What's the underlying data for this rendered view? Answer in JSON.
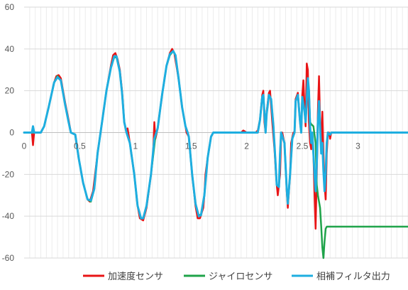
{
  "chart_data": {
    "type": "line",
    "title": "",
    "xlabel": "",
    "ylabel": "",
    "xlim": [
      0,
      3.45
    ],
    "ylim": [
      -60,
      60
    ],
    "x_ticks": [
      0,
      0.5,
      1,
      1.5,
      2,
      2.5,
      3
    ],
    "x_tick_labels": [
      "0",
      "0.5",
      "1",
      "1.5",
      "2",
      "2.5",
      "3"
    ],
    "y_ticks": [
      60,
      40,
      20,
      0,
      -20,
      -40,
      -60
    ],
    "y_tick_labels": [
      "60",
      "40",
      "20",
      "0",
      "-20",
      "-40",
      "-60"
    ],
    "grid": {
      "horizontal": true,
      "minor_vertical": true
    },
    "legend_position": "bottom",
    "series": [
      {
        "name": "加速度センサ",
        "color": "#e81416",
        "points": [
          [
            0,
            0
          ],
          [
            0.07,
            0
          ],
          [
            0.08,
            -6
          ],
          [
            0.09,
            0
          ],
          [
            0.15,
            0
          ],
          [
            0.18,
            3
          ],
          [
            0.22,
            12
          ],
          [
            0.27,
            24
          ],
          [
            0.29,
            27
          ],
          [
            0.31,
            27.5
          ],
          [
            0.33,
            26
          ],
          [
            0.37,
            14
          ],
          [
            0.4,
            6
          ],
          [
            0.42,
            0
          ],
          [
            0.46,
            -1
          ],
          [
            0.49,
            -12
          ],
          [
            0.53,
            -24
          ],
          [
            0.57,
            -32
          ],
          [
            0.59,
            -33
          ],
          [
            0.62,
            -28
          ],
          [
            0.66,
            -10
          ],
          [
            0.7,
            5
          ],
          [
            0.74,
            20
          ],
          [
            0.78,
            32
          ],
          [
            0.8,
            37
          ],
          [
            0.82,
            38
          ],
          [
            0.84,
            35
          ],
          [
            0.86,
            30
          ],
          [
            0.88,
            20
          ],
          [
            0.9,
            5
          ],
          [
            0.92,
            0
          ],
          [
            0.93,
            2
          ],
          [
            0.95,
            -5
          ],
          [
            0.99,
            -20
          ],
          [
            1.02,
            -35
          ],
          [
            1.04,
            -41
          ],
          [
            1.07,
            -42
          ],
          [
            1.1,
            -36
          ],
          [
            1.14,
            -20
          ],
          [
            1.16,
            -10
          ],
          [
            1.17,
            5
          ],
          [
            1.18,
            -3
          ],
          [
            1.2,
            2
          ],
          [
            1.24,
            18
          ],
          [
            1.28,
            32
          ],
          [
            1.31,
            38
          ],
          [
            1.33,
            40
          ],
          [
            1.35,
            38
          ],
          [
            1.39,
            25
          ],
          [
            1.42,
            12
          ],
          [
            1.45,
            3
          ],
          [
            1.46,
            0
          ],
          [
            1.48,
            -2
          ],
          [
            1.51,
            -20
          ],
          [
            1.54,
            -35
          ],
          [
            1.56,
            -41
          ],
          [
            1.58,
            -41
          ],
          [
            1.61,
            -36
          ],
          [
            1.62,
            -30
          ],
          [
            1.63,
            -20
          ],
          [
            1.65,
            -12
          ],
          [
            1.68,
            -2
          ],
          [
            1.7,
            0
          ],
          [
            1.95,
            0
          ],
          [
            1.97,
            1
          ],
          [
            2.0,
            0
          ],
          [
            2.08,
            0
          ],
          [
            2.1,
            1
          ],
          [
            2.12,
            6
          ],
          [
            2.14,
            18
          ],
          [
            2.15,
            20
          ],
          [
            2.16,
            5
          ],
          [
            2.17,
            0
          ],
          [
            2.18,
            10
          ],
          [
            2.2,
            19
          ],
          [
            2.21,
            20
          ],
          [
            2.23,
            5
          ],
          [
            2.25,
            -8
          ],
          [
            2.27,
            -25
          ],
          [
            2.28,
            -30
          ],
          [
            2.3,
            -20
          ],
          [
            2.31,
            -2
          ],
          [
            2.32,
            0
          ],
          [
            2.34,
            -5
          ],
          [
            2.36,
            -28
          ],
          [
            2.37,
            -36
          ],
          [
            2.39,
            -20
          ],
          [
            2.4,
            -5
          ],
          [
            2.42,
            0
          ],
          [
            2.43,
            0
          ],
          [
            2.44,
            16
          ],
          [
            2.46,
            19
          ],
          [
            2.48,
            5
          ],
          [
            2.49,
            0
          ],
          [
            2.5,
            18
          ],
          [
            2.51,
            25
          ],
          [
            2.52,
            12
          ],
          [
            2.53,
            3
          ],
          [
            2.54,
            33
          ],
          [
            2.55,
            30
          ],
          [
            2.56,
            5
          ],
          [
            2.57,
            -5
          ],
          [
            2.58,
            -8
          ],
          [
            2.59,
            0
          ],
          [
            2.6,
            -10
          ],
          [
            2.61,
            -30
          ],
          [
            2.62,
            -46
          ],
          [
            2.63,
            -20
          ],
          [
            2.64,
            10
          ],
          [
            2.65,
            27
          ],
          [
            2.66,
            5
          ],
          [
            2.67,
            -5
          ],
          [
            2.68,
            10
          ],
          [
            2.69,
            -10
          ],
          [
            2.7,
            -25
          ],
          [
            2.71,
            -32
          ],
          [
            2.72,
            -10
          ],
          [
            2.73,
            0
          ],
          [
            2.74,
            0
          ],
          [
            2.75,
            -3
          ],
          [
            2.76,
            0
          ],
          [
            3.45,
            0
          ]
        ]
      },
      {
        "name": "ジャイロセンサ",
        "color": "#1fa34a",
        "points": [
          [
            0,
            0
          ],
          [
            0.15,
            0
          ],
          [
            0.18,
            3
          ],
          [
            0.22,
            12
          ],
          [
            0.27,
            24
          ],
          [
            0.3,
            27
          ],
          [
            0.33,
            25
          ],
          [
            0.37,
            13
          ],
          [
            0.4,
            5
          ],
          [
            0.42,
            0
          ],
          [
            0.46,
            -1
          ],
          [
            0.49,
            -12
          ],
          [
            0.53,
            -24
          ],
          [
            0.57,
            -32
          ],
          [
            0.6,
            -33
          ],
          [
            0.63,
            -27
          ],
          [
            0.66,
            -10
          ],
          [
            0.7,
            5
          ],
          [
            0.74,
            20
          ],
          [
            0.78,
            31
          ],
          [
            0.81,
            36
          ],
          [
            0.83,
            36
          ],
          [
            0.86,
            29
          ],
          [
            0.88,
            19
          ],
          [
            0.9,
            5
          ],
          [
            0.92,
            0
          ],
          [
            0.95,
            -5
          ],
          [
            0.99,
            -20
          ],
          [
            1.02,
            -35
          ],
          [
            1.05,
            -41
          ],
          [
            1.07,
            -41
          ],
          [
            1.1,
            -35
          ],
          [
            1.14,
            -20
          ],
          [
            1.18,
            -2
          ],
          [
            1.2,
            2
          ],
          [
            1.24,
            18
          ],
          [
            1.28,
            32
          ],
          [
            1.31,
            37
          ],
          [
            1.34,
            39
          ],
          [
            1.36,
            37
          ],
          [
            1.39,
            25
          ],
          [
            1.42,
            12
          ],
          [
            1.45,
            3
          ],
          [
            1.47,
            0
          ],
          [
            1.48,
            -2
          ],
          [
            1.51,
            -20
          ],
          [
            1.54,
            -34
          ],
          [
            1.57,
            -40
          ],
          [
            1.59,
            -39
          ],
          [
            1.62,
            -30
          ],
          [
            1.65,
            -12
          ],
          [
            1.68,
            -2
          ],
          [
            1.7,
            0
          ],
          [
            2.1,
            0
          ],
          [
            2.12,
            6
          ],
          [
            2.14,
            17
          ],
          [
            2.15,
            18
          ],
          [
            2.17,
            0
          ],
          [
            2.18,
            9
          ],
          [
            2.2,
            18
          ],
          [
            2.22,
            16
          ],
          [
            2.24,
            3
          ],
          [
            2.26,
            -15
          ],
          [
            2.27,
            -25
          ],
          [
            2.29,
            -26
          ],
          [
            2.3,
            -10
          ],
          [
            2.31,
            0
          ],
          [
            2.34,
            -5
          ],
          [
            2.36,
            -27
          ],
          [
            2.37,
            -34
          ],
          [
            2.39,
            -20
          ],
          [
            2.41,
            -3
          ],
          [
            2.43,
            0
          ],
          [
            2.44,
            15
          ],
          [
            2.46,
            18
          ],
          [
            2.48,
            5
          ],
          [
            2.49,
            0
          ],
          [
            2.5,
            17
          ],
          [
            2.52,
            10
          ],
          [
            2.53,
            5
          ],
          [
            2.55,
            24
          ],
          [
            2.56,
            20
          ],
          [
            2.57,
            5
          ],
          [
            2.58,
            4
          ],
          [
            2.6,
            3
          ],
          [
            2.62,
            -5
          ],
          [
            2.63,
            -25
          ],
          [
            2.64,
            -30
          ],
          [
            2.65,
            -33
          ],
          [
            2.66,
            -36
          ],
          [
            2.67,
            -45
          ],
          [
            2.68,
            -55
          ],
          [
            2.69,
            -60
          ],
          [
            2.7,
            -52
          ],
          [
            2.71,
            -46
          ],
          [
            2.72,
            -45
          ],
          [
            3.45,
            -45
          ]
        ]
      },
      {
        "name": "相補フィルタ出力",
        "color": "#1eaee0",
        "points": [
          [
            0,
            0
          ],
          [
            0.07,
            0
          ],
          [
            0.08,
            3
          ],
          [
            0.09,
            0
          ],
          [
            0.15,
            0
          ],
          [
            0.18,
            3
          ],
          [
            0.22,
            12
          ],
          [
            0.27,
            24
          ],
          [
            0.3,
            26.5
          ],
          [
            0.33,
            25
          ],
          [
            0.37,
            13
          ],
          [
            0.4,
            5
          ],
          [
            0.42,
            0
          ],
          [
            0.46,
            -1
          ],
          [
            0.49,
            -12
          ],
          [
            0.53,
            -24
          ],
          [
            0.57,
            -32
          ],
          [
            0.6,
            -32.5
          ],
          [
            0.63,
            -27
          ],
          [
            0.66,
            -10
          ],
          [
            0.7,
            5
          ],
          [
            0.74,
            20
          ],
          [
            0.78,
            31
          ],
          [
            0.81,
            36.5
          ],
          [
            0.83,
            36.5
          ],
          [
            0.86,
            29
          ],
          [
            0.88,
            19
          ],
          [
            0.9,
            5
          ],
          [
            0.92,
            0
          ],
          [
            0.95,
            -5
          ],
          [
            0.99,
            -20
          ],
          [
            1.02,
            -35
          ],
          [
            1.05,
            -41
          ],
          [
            1.07,
            -41
          ],
          [
            1.1,
            -35
          ],
          [
            1.14,
            -20
          ],
          [
            1.17,
            -3
          ],
          [
            1.2,
            2
          ],
          [
            1.24,
            18
          ],
          [
            1.28,
            32
          ],
          [
            1.31,
            37.5
          ],
          [
            1.34,
            39
          ],
          [
            1.36,
            37
          ],
          [
            1.39,
            25
          ],
          [
            1.42,
            12
          ],
          [
            1.45,
            3
          ],
          [
            1.47,
            0
          ],
          [
            1.48,
            -2
          ],
          [
            1.51,
            -20
          ],
          [
            1.54,
            -34
          ],
          [
            1.57,
            -40
          ],
          [
            1.59,
            -39.5
          ],
          [
            1.62,
            -30
          ],
          [
            1.65,
            -12
          ],
          [
            1.68,
            -2
          ],
          [
            1.7,
            0
          ],
          [
            2.1,
            0
          ],
          [
            2.12,
            6
          ],
          [
            2.14,
            17
          ],
          [
            2.15,
            18
          ],
          [
            2.17,
            0
          ],
          [
            2.18,
            9
          ],
          [
            2.2,
            18
          ],
          [
            2.22,
            16
          ],
          [
            2.24,
            3
          ],
          [
            2.26,
            -15
          ],
          [
            2.27,
            -25
          ],
          [
            2.29,
            -26
          ],
          [
            2.3,
            -10
          ],
          [
            2.31,
            0
          ],
          [
            2.34,
            -5
          ],
          [
            2.36,
            -27
          ],
          [
            2.37,
            -34
          ],
          [
            2.39,
            -20
          ],
          [
            2.41,
            -3
          ],
          [
            2.43,
            0
          ],
          [
            2.44,
            15
          ],
          [
            2.46,
            18
          ],
          [
            2.48,
            5
          ],
          [
            2.49,
            0
          ],
          [
            2.5,
            17
          ],
          [
            2.52,
            10
          ],
          [
            2.53,
            5
          ],
          [
            2.55,
            26
          ],
          [
            2.56,
            20
          ],
          [
            2.57,
            3
          ],
          [
            2.58,
            -5
          ],
          [
            2.59,
            0
          ],
          [
            2.6,
            -10
          ],
          [
            2.61,
            -20
          ],
          [
            2.62,
            -28
          ],
          [
            2.63,
            -15
          ],
          [
            2.64,
            5
          ],
          [
            2.65,
            15
          ],
          [
            2.66,
            3
          ],
          [
            2.67,
            -10
          ],
          [
            2.68,
            -5
          ],
          [
            2.69,
            -18
          ],
          [
            2.7,
            -28
          ],
          [
            2.71,
            -20
          ],
          [
            2.72,
            -5
          ],
          [
            2.73,
            0
          ],
          [
            2.75,
            -1
          ],
          [
            2.76,
            0
          ],
          [
            3.45,
            0
          ]
        ]
      }
    ]
  }
}
